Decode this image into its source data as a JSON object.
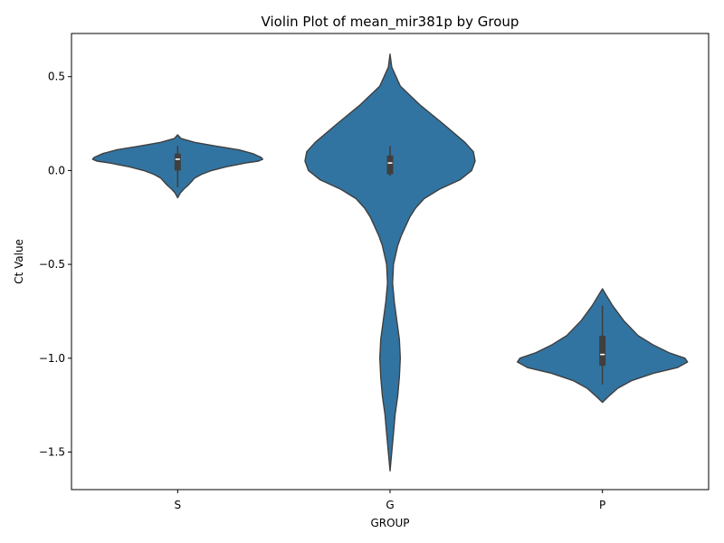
{
  "chart_data": {
    "type": "violin",
    "title": "Violin Plot of mean_mir381p by Group",
    "xlabel": "GROUP",
    "ylabel": "Ct Value",
    "categories": [
      "S",
      "G",
      "P"
    ],
    "ylim": [
      -1.7,
      0.73
    ],
    "yticks": [
      0.5,
      0.0,
      -0.5,
      -1.0,
      -1.5
    ],
    "ytick_labels": [
      "0.5",
      "0.0",
      "−0.5",
      "−1.0",
      "−1.5"
    ],
    "grid": false,
    "legend": "none",
    "violin_color": "#3274a1",
    "edge_color": "#3f3f3f",
    "violins": [
      {
        "category": "S",
        "profile": [
          [
            0.19,
            0.0
          ],
          [
            0.17,
            0.04
          ],
          [
            0.15,
            0.2
          ],
          [
            0.13,
            0.45
          ],
          [
            0.11,
            0.72
          ],
          [
            0.09,
            0.88
          ],
          [
            0.07,
            0.98
          ],
          [
            0.06,
            1.0
          ],
          [
            0.05,
            0.95
          ],
          [
            0.04,
            0.8
          ],
          [
            0.02,
            0.57
          ],
          [
            0.0,
            0.4
          ],
          [
            -0.02,
            0.28
          ],
          [
            -0.04,
            0.2
          ],
          [
            -0.06,
            0.16
          ],
          [
            -0.08,
            0.12
          ],
          [
            -0.1,
            0.07
          ],
          [
            -0.12,
            0.03
          ],
          [
            -0.145,
            0.0
          ]
        ],
        "box": {
          "q1": 0.0,
          "median": 0.06,
          "q3": 0.09,
          "whisker_low": -0.09,
          "whisker_high": 0.13
        }
      },
      {
        "category": "G",
        "profile": [
          [
            0.62,
            0.0
          ],
          [
            0.55,
            0.02
          ],
          [
            0.45,
            0.12
          ],
          [
            0.35,
            0.35
          ],
          [
            0.25,
            0.62
          ],
          [
            0.15,
            0.88
          ],
          [
            0.1,
            0.98
          ],
          [
            0.05,
            1.0
          ],
          [
            0.0,
            0.96
          ],
          [
            -0.05,
            0.82
          ],
          [
            -0.1,
            0.58
          ],
          [
            -0.15,
            0.4
          ],
          [
            -0.2,
            0.3
          ],
          [
            -0.25,
            0.23
          ],
          [
            -0.3,
            0.18
          ],
          [
            -0.35,
            0.13
          ],
          [
            -0.4,
            0.09
          ],
          [
            -0.5,
            0.04
          ],
          [
            -0.6,
            0.03
          ],
          [
            -0.7,
            0.05
          ],
          [
            -0.8,
            0.08
          ],
          [
            -0.9,
            0.11
          ],
          [
            -1.0,
            0.12
          ],
          [
            -1.1,
            0.11
          ],
          [
            -1.2,
            0.09
          ],
          [
            -1.3,
            0.06
          ],
          [
            -1.4,
            0.04
          ],
          [
            -1.5,
            0.02
          ],
          [
            -1.6,
            0.0
          ]
        ],
        "box": {
          "q1": -0.02,
          "median": 0.04,
          "q3": 0.08,
          "whisker_low": -0.03,
          "whisker_high": 0.13
        }
      },
      {
        "category": "P",
        "profile": [
          [
            -0.63,
            0.0
          ],
          [
            -0.66,
            0.04
          ],
          [
            -0.72,
            0.12
          ],
          [
            -0.8,
            0.25
          ],
          [
            -0.88,
            0.42
          ],
          [
            -0.93,
            0.6
          ],
          [
            -0.97,
            0.78
          ],
          [
            -1.0,
            0.97
          ],
          [
            -1.02,
            1.0
          ],
          [
            -1.05,
            0.88
          ],
          [
            -1.08,
            0.6
          ],
          [
            -1.12,
            0.34
          ],
          [
            -1.16,
            0.18
          ],
          [
            -1.2,
            0.08
          ],
          [
            -1.235,
            0.0
          ]
        ],
        "box": {
          "q1": -1.04,
          "median": -0.98,
          "q3": -0.88,
          "whisker_low": -1.14,
          "whisker_high": -0.72
        }
      }
    ]
  }
}
